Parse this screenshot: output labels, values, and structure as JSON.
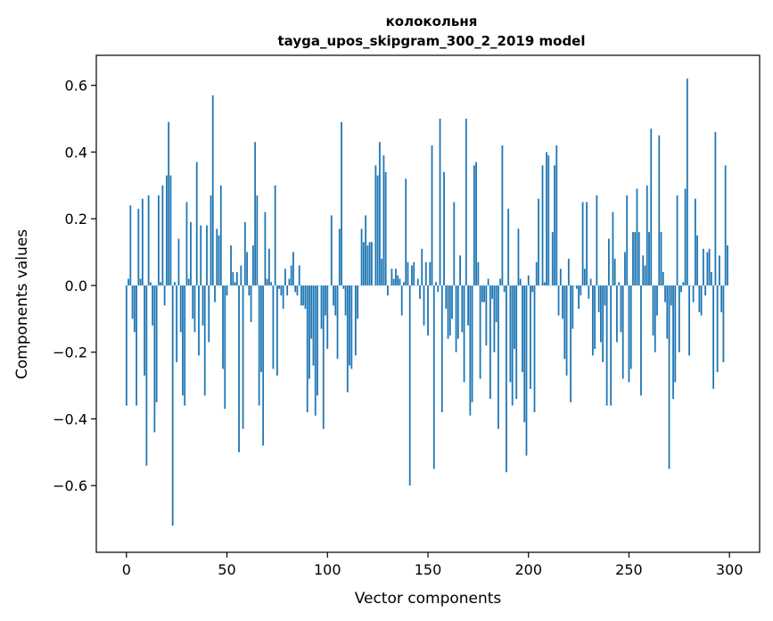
{
  "chart_data": {
    "type": "bar",
    "title": "колокольня",
    "subtitle": "tayga_upos_skipgram_300_2_2019 model",
    "xlabel": "Vector components",
    "ylabel": "Components values",
    "xlim": [
      -15,
      315
    ],
    "ylim": [
      -0.8,
      0.69
    ],
    "xticks": [
      0,
      50,
      100,
      150,
      200,
      250,
      300
    ],
    "yticks": [
      -0.6,
      -0.4,
      -0.2,
      0.0,
      0.2,
      0.4,
      0.6
    ],
    "ytick_labels": [
      "−0.6",
      "−0.4",
      "−0.2",
      "0.0",
      "0.2",
      "0.4",
      "0.6"
    ],
    "bar_color": "#1f77b4",
    "grid": false,
    "values": [
      -0.36,
      0.02,
      0.24,
      -0.1,
      -0.14,
      -0.36,
      0.23,
      0.02,
      0.26,
      -0.27,
      -0.54,
      0.27,
      0.01,
      -0.12,
      -0.44,
      -0.35,
      0.27,
      0.01,
      0.3,
      -0.06,
      0.33,
      0.49,
      0.33,
      -0.72,
      0.01,
      -0.23,
      0.14,
      -0.14,
      -0.33,
      -0.36,
      0.25,
      0.02,
      0.19,
      -0.1,
      -0.14,
      0.37,
      -0.21,
      0.18,
      -0.12,
      -0.33,
      0.18,
      -0.17,
      0.27,
      0.57,
      -0.05,
      0.17,
      0.15,
      0.3,
      -0.25,
      -0.37,
      -0.03,
      0.0,
      0.12,
      0.04,
      0.01,
      0.04,
      -0.5,
      0.06,
      -0.43,
      0.19,
      0.1,
      -0.03,
      -0.11,
      0.12,
      0.43,
      0.27,
      -0.36,
      -0.26,
      -0.48,
      0.22,
      0.02,
      0.11,
      0.01,
      -0.25,
      0.3,
      -0.27,
      -0.01,
      -0.03,
      -0.07,
      0.05,
      -0.03,
      0.02,
      0.06,
      0.1,
      -0.02,
      -0.03,
      0.06,
      -0.06,
      -0.06,
      -0.07,
      -0.38,
      -0.28,
      -0.16,
      -0.24,
      -0.39,
      -0.33,
      0.0,
      -0.13,
      -0.43,
      -0.09,
      -0.19,
      0.0,
      0.21,
      -0.06,
      -0.09,
      -0.22,
      0.17,
      0.49,
      -0.01,
      -0.09,
      -0.32,
      -0.24,
      -0.25,
      0.0,
      -0.21,
      -0.1,
      0.0,
      0.17,
      0.13,
      0.21,
      0.12,
      0.13,
      0.13,
      0.0,
      0.36,
      0.33,
      0.43,
      0.08,
      0.39,
      0.34,
      -0.03,
      0.0,
      0.05,
      0.02,
      0.05,
      0.03,
      0.02,
      -0.09,
      0.01,
      0.32,
      0.07,
      -0.6,
      0.06,
      0.07,
      0.0,
      0.02,
      -0.04,
      0.11,
      -0.12,
      0.07,
      -0.15,
      0.07,
      0.42,
      -0.55,
      0.01,
      -0.02,
      0.5,
      -0.38,
      0.34,
      -0.07,
      -0.16,
      -0.15,
      -0.1,
      0.25,
      -0.2,
      -0.16,
      0.09,
      -0.14,
      -0.29,
      0.5,
      -0.12,
      -0.39,
      -0.35,
      0.36,
      0.37,
      0.07,
      -0.28,
      -0.05,
      -0.05,
      -0.18,
      0.02,
      -0.34,
      -0.04,
      -0.2,
      -0.11,
      -0.43,
      0.02,
      0.42,
      -0.02,
      -0.56,
      0.23,
      -0.29,
      -0.36,
      -0.19,
      -0.34,
      0.17,
      0.02,
      -0.26,
      -0.41,
      -0.51,
      0.03,
      -0.31,
      -0.02,
      -0.38,
      0.07,
      0.26,
      0.0,
      0.36,
      0.01,
      0.4,
      0.39,
      0.0,
      0.16,
      0.36,
      0.42,
      -0.09,
      0.05,
      -0.1,
      -0.22,
      -0.27,
      0.08,
      -0.35,
      -0.13,
      0.0,
      -0.01,
      -0.07,
      -0.03,
      0.25,
      0.05,
      0.25,
      -0.04,
      0.02,
      -0.21,
      -0.19,
      0.27,
      -0.08,
      -0.17,
      -0.23,
      -0.06,
      -0.36,
      0.14,
      -0.36,
      0.22,
      0.08,
      -0.17,
      0.01,
      -0.14,
      -0.28,
      0.1,
      0.27,
      -0.29,
      -0.25,
      0.16,
      0.16,
      0.29,
      0.16,
      -0.33,
      0.09,
      0.06,
      0.3,
      0.16,
      0.47,
      -0.15,
      -0.2,
      -0.09,
      0.45,
      0.16,
      0.04,
      -0.05,
      -0.16,
      -0.55,
      -0.06,
      -0.34,
      -0.29,
      0.27,
      -0.2,
      -0.02,
      0.01,
      0.29,
      0.62,
      -0.21,
      0.0,
      -0.05,
      0.26,
      0.15,
      -0.08,
      -0.09,
      0.11,
      -0.03,
      0.1,
      0.11,
      0.04,
      -0.31,
      0.46,
      -0.26,
      0.09,
      -0.08,
      -0.23,
      0.36,
      0.12
    ]
  }
}
